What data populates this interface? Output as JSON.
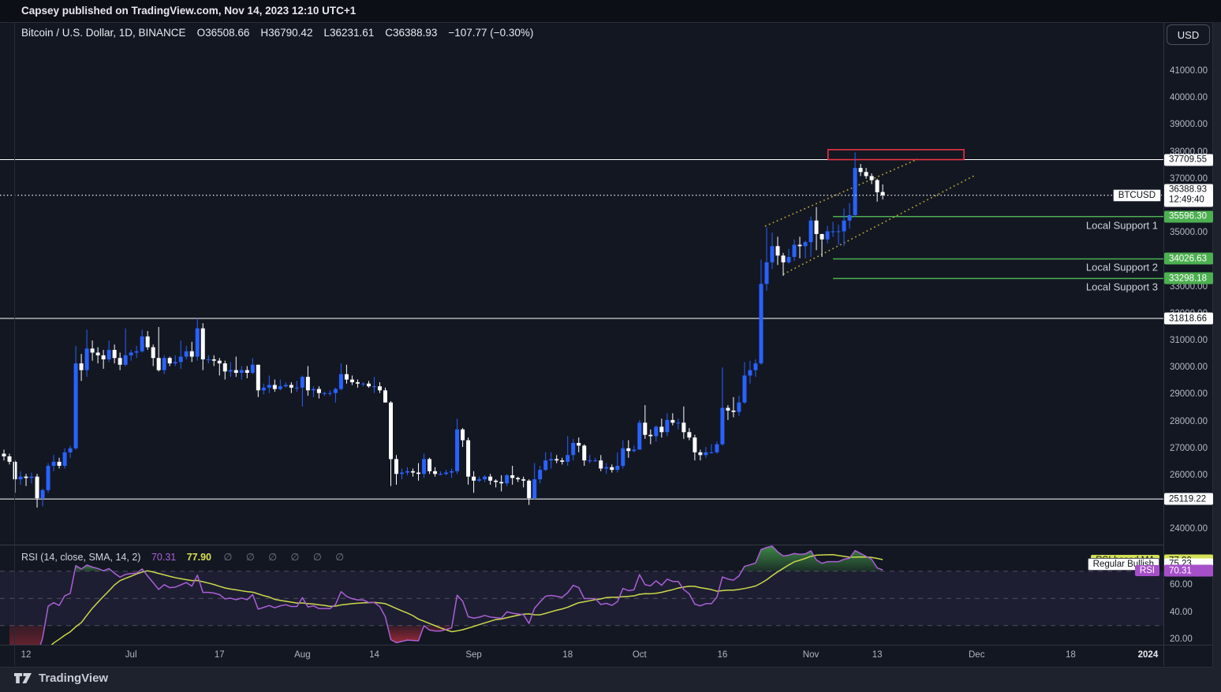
{
  "top_bar": {
    "attribution": "Capsey published on TradingView.com, Nov 14, 2023 12:10 UTC+1"
  },
  "header": {
    "symbol": "Bitcoin / U.S. Dollar, 1D, BINANCE",
    "o": "O36508.66",
    "h": "H36790.42",
    "l": "L36231.61",
    "c": "C36388.93",
    "change": "−107.77 (−0.30%)"
  },
  "price_scale": {
    "currency": "USD",
    "ticks": [
      {
        "label": "41000.00",
        "price": 41000
      },
      {
        "label": "40000.00",
        "price": 40000
      },
      {
        "label": "39000.00",
        "price": 39000
      },
      {
        "label": "38000.00",
        "price": 38000
      },
      {
        "label": "37000.00",
        "price": 37000
      },
      {
        "label": "35000.00",
        "price": 35000
      },
      {
        "label": "33000.00",
        "price": 33000
      },
      {
        "label": "32000.00",
        "price": 32000
      },
      {
        "label": "31000.00",
        "price": 31000
      },
      {
        "label": "30000.00",
        "price": 30000
      },
      {
        "label": "29000.00",
        "price": 29000
      },
      {
        "label": "28000.00",
        "price": 28000
      },
      {
        "label": "27000.00",
        "price": 27000
      },
      {
        "label": "26000.00",
        "price": 26000
      },
      {
        "label": "24000.00",
        "price": 24000
      }
    ],
    "labels": [
      {
        "text": "37709.55",
        "price": 37709.55,
        "style": "white"
      },
      {
        "text": "36388.93",
        "countdown": "12:49:40",
        "price": 36388.93,
        "style": "white"
      },
      {
        "text": "35596.30",
        "price": 35596.3,
        "style": "green"
      },
      {
        "text": "34026.63",
        "price": 34026.63,
        "style": "green"
      },
      {
        "text": "33298.18",
        "price": 33298.18,
        "style": "green"
      },
      {
        "text": "31818.66",
        "price": 31818.66,
        "style": "white"
      },
      {
        "text": "25119.22",
        "price": 25119.22,
        "style": "white"
      }
    ]
  },
  "chart_data": {
    "type": "candlestick",
    "symbol": "BTCUSD",
    "exchange": "BINANCE",
    "timeframe": "1D",
    "start_date": "2023-06-08",
    "up_color": "#2962ff",
    "down_color": "#ffffff",
    "y_axis": {
      "min": 23500,
      "max": 42100
    },
    "candles": [
      [
        26800,
        26950,
        26550,
        26700
      ],
      [
        26700,
        26800,
        26400,
        26500
      ],
      [
        26500,
        26550,
        25350,
        25850
      ],
      [
        25850,
        26150,
        25650,
        25950
      ],
      [
        25950,
        26050,
        25600,
        25900
      ],
      [
        25900,
        26100,
        25700,
        25950
      ],
      [
        25950,
        26050,
        24800,
        25150
      ],
      [
        25150,
        25500,
        24850,
        25450
      ],
      [
        25450,
        26450,
        25350,
        26350
      ],
      [
        26350,
        26750,
        26150,
        26500
      ],
      [
        26500,
        26650,
        26250,
        26350
      ],
      [
        26350,
        27000,
        26250,
        26850
      ],
      [
        26850,
        27100,
        26650,
        27000
      ],
      [
        27000,
        30800,
        26950,
        30150
      ],
      [
        30150,
        30500,
        29500,
        29900
      ],
      [
        29900,
        31400,
        29650,
        30700
      ],
      [
        30700,
        31000,
        30250,
        30550
      ],
      [
        30550,
        30750,
        30150,
        30450
      ],
      [
        30450,
        30650,
        29950,
        30300
      ],
      [
        30300,
        31000,
        30200,
        30650
      ],
      [
        30650,
        30850,
        30150,
        30350
      ],
      [
        30350,
        30550,
        29900,
        30100
      ],
      [
        30100,
        31450,
        30050,
        30450
      ],
      [
        30450,
        30650,
        30250,
        30550
      ],
      [
        30550,
        30800,
        30350,
        30600
      ],
      [
        30600,
        31400,
        30550,
        31150
      ],
      [
        31150,
        31350,
        30650,
        30750
      ],
      [
        30750,
        30850,
        30050,
        30350
      ],
      [
        30350,
        31500,
        29850,
        29900
      ],
      [
        29900,
        30450,
        29750,
        30350
      ],
      [
        30350,
        30400,
        30050,
        30150
      ],
      [
        30150,
        30450,
        30050,
        30200
      ],
      [
        30200,
        31000,
        29950,
        30400
      ],
      [
        30400,
        30800,
        30300,
        30600
      ],
      [
        30600,
        30950,
        30200,
        30400
      ],
      [
        30400,
        31820,
        30250,
        31450
      ],
      [
        31450,
        31640,
        29900,
        30300
      ],
      [
        30300,
        30450,
        30150,
        30300
      ],
      [
        30300,
        30450,
        30050,
        30250
      ],
      [
        30250,
        30350,
        29700,
        30150
      ],
      [
        30150,
        30250,
        29550,
        29850
      ],
      [
        29850,
        30200,
        29650,
        29900
      ],
      [
        29900,
        30400,
        29650,
        29800
      ],
      [
        29800,
        30050,
        29550,
        29900
      ],
      [
        29900,
        30050,
        29600,
        29800
      ],
      [
        29800,
        30350,
        29750,
        30100
      ],
      [
        30100,
        30100,
        28900,
        29150
      ],
      [
        29150,
        29400,
        29000,
        29250
      ],
      [
        29250,
        29700,
        29050,
        29350
      ],
      [
        29350,
        29550,
        29100,
        29200
      ],
      [
        29200,
        29550,
        29150,
        29300
      ],
      [
        29300,
        29450,
        29250,
        29350
      ],
      [
        29350,
        29450,
        29050,
        29250
      ],
      [
        29250,
        29500,
        29100,
        29250
      ],
      [
        29250,
        29700,
        28550,
        29650
      ],
      [
        29650,
        30050,
        28950,
        29150
      ],
      [
        29150,
        29300,
        28900,
        29200
      ],
      [
        29200,
        29300,
        28850,
        29050
      ],
      [
        29050,
        29100,
        28950,
        29050
      ],
      [
        29050,
        29150,
        28950,
        29050
      ],
      [
        29050,
        29250,
        28700,
        29200
      ],
      [
        29200,
        30150,
        29150,
        29750
      ],
      [
        29750,
        30100,
        29400,
        29550
      ],
      [
        29550,
        29700,
        29350,
        29450
      ],
      [
        29450,
        29550,
        29250,
        29400
      ],
      [
        29400,
        29450,
        29300,
        29400
      ],
      [
        29400,
        29500,
        29250,
        29300
      ],
      [
        29300,
        29650,
        29050,
        29300
      ],
      [
        29300,
        29450,
        29050,
        29150
      ],
      [
        29150,
        29250,
        28700,
        28700
      ],
      [
        28700,
        28750,
        25600,
        26600
      ],
      [
        26600,
        26750,
        25650,
        26050
      ],
      [
        26050,
        26250,
        25850,
        26100
      ],
      [
        26100,
        26300,
        26000,
        26150
      ],
      [
        26150,
        26250,
        25950,
        26100
      ],
      [
        26100,
        26450,
        25800,
        26050
      ],
      [
        26050,
        26800,
        25900,
        26600
      ],
      [
        26600,
        26650,
        26050,
        26150
      ],
      [
        26150,
        26300,
        25950,
        26050
      ],
      [
        26050,
        26150,
        26000,
        26050
      ],
      [
        26050,
        26200,
        26000,
        26100
      ],
      [
        26100,
        26250,
        25900,
        26150
      ],
      [
        26150,
        28100,
        26050,
        27700
      ],
      [
        27700,
        27750,
        27050,
        27300
      ],
      [
        27300,
        27400,
        25650,
        25950
      ],
      [
        25950,
        26150,
        25350,
        25800
      ],
      [
        25800,
        25950,
        25750,
        25850
      ],
      [
        25850,
        26000,
        25750,
        25950
      ],
      [
        25950,
        26050,
        25650,
        25800
      ],
      [
        25800,
        25850,
        25550,
        25750
      ],
      [
        25750,
        26000,
        25400,
        25700
      ],
      [
        25700,
        26050,
        25600,
        26000
      ],
      [
        26000,
        26350,
        25650,
        25900
      ],
      [
        25900,
        25950,
        25750,
        25850
      ],
      [
        25850,
        25950,
        25550,
        25800
      ],
      [
        25800,
        25850,
        24900,
        25150
      ],
      [
        25150,
        26450,
        25100,
        25850
      ],
      [
        25850,
        26350,
        25700,
        26200
      ],
      [
        26200,
        26850,
        26150,
        26550
      ],
      [
        26550,
        26850,
        26250,
        26600
      ],
      [
        26600,
        26750,
        26450,
        26550
      ],
      [
        26550,
        26650,
        26400,
        26500
      ],
      [
        26500,
        27450,
        26350,
        26750
      ],
      [
        26750,
        27350,
        26550,
        27200
      ],
      [
        27200,
        27400,
        26850,
        27100
      ],
      [
        27100,
        27150,
        26350,
        26550
      ],
      [
        26550,
        26750,
        26450,
        26550
      ],
      [
        26550,
        26650,
        26500,
        26550
      ],
      [
        26550,
        26750,
        26150,
        26250
      ],
      [
        26250,
        26450,
        26050,
        26300
      ],
      [
        26300,
        26400,
        26100,
        26200
      ],
      [
        26200,
        26850,
        26100,
        26350
      ],
      [
        26350,
        27300,
        26250,
        27000
      ],
      [
        27000,
        27300,
        26650,
        26900
      ],
      [
        26900,
        27100,
        26850,
        26950
      ],
      [
        26950,
        28050,
        26950,
        27950
      ],
      [
        27950,
        28600,
        27350,
        27500
      ],
      [
        27500,
        27700,
        27150,
        27450
      ],
      [
        27450,
        27850,
        27250,
        27800
      ],
      [
        27800,
        28100,
        27400,
        27600
      ],
      [
        27600,
        28300,
        27450,
        28050
      ],
      [
        28050,
        28300,
        27850,
        27950
      ],
      [
        27950,
        28100,
        27700,
        27950
      ],
      [
        27950,
        28550,
        27350,
        27600
      ],
      [
        27600,
        27750,
        27300,
        27400
      ],
      [
        27400,
        27500,
        26550,
        26850
      ],
      [
        26850,
        26950,
        26550,
        26750
      ],
      [
        26750,
        27050,
        26650,
        26850
      ],
      [
        26850,
        27150,
        26800,
        26850
      ],
      [
        26850,
        27250,
        26800,
        27150
      ],
      [
        27150,
        30000,
        27100,
        28500
      ],
      [
        28500,
        28600,
        28050,
        28400
      ],
      [
        28400,
        28900,
        28150,
        28350
      ],
      [
        28350,
        28950,
        28200,
        28700
      ],
      [
        28700,
        30200,
        28650,
        29700
      ],
      [
        29700,
        30250,
        29400,
        29900
      ],
      [
        29900,
        30300,
        29650,
        30150
      ],
      [
        30150,
        34000,
        30100,
        33100
      ],
      [
        33100,
        35200,
        32850,
        33900
      ],
      [
        33900,
        35000,
        33650,
        34500
      ],
      [
        34500,
        34850,
        33800,
        34150
      ],
      [
        34150,
        34250,
        33400,
        33900
      ],
      [
        33900,
        34400,
        33850,
        34100
      ],
      [
        34100,
        34750,
        33950,
        34550
      ],
      [
        34550,
        34850,
        34050,
        34500
      ],
      [
        34500,
        34700,
        34050,
        34650
      ],
      [
        34650,
        35600,
        34100,
        35450
      ],
      [
        35450,
        35950,
        34350,
        34950
      ],
      [
        34950,
        34950,
        34100,
        34750
      ],
      [
        34750,
        35250,
        34600,
        35050
      ],
      [
        35050,
        35400,
        34850,
        35050
      ],
      [
        35050,
        35300,
        34550,
        35050
      ],
      [
        35050,
        35900,
        34500,
        35450
      ],
      [
        35450,
        36100,
        35150,
        35650
      ],
      [
        35650,
        37980,
        35600,
        37400
      ],
      [
        37400,
        37550,
        37100,
        37250
      ],
      [
        37250,
        37400,
        37000,
        37100
      ],
      [
        37100,
        37200,
        36800,
        36950
      ],
      [
        36950,
        37000,
        36150,
        36500
      ],
      [
        36508.66,
        36790.42,
        36231.61,
        36388.93
      ]
    ],
    "overlays": {
      "horizontal_lines": [
        {
          "price": 37709.55,
          "color": "#ffffff",
          "style": "solid"
        },
        {
          "price": 31818.66,
          "color": "#ffffff",
          "style": "solid"
        },
        {
          "price": 25119.22,
          "color": "#ffffff",
          "style": "solid"
        }
      ],
      "current_price_line": {
        "price": 36388.93,
        "color": "#ffffff",
        "style": "dotted"
      },
      "support_lines": [
        {
          "price": 35596.3,
          "label": "Local Support 1",
          "color": "#4caf50",
          "start_index": 150
        },
        {
          "price": 34026.63,
          "label": "Local Support 2",
          "color": "#4caf50",
          "start_index": 150
        },
        {
          "price": 33298.18,
          "label": "Local Support 3",
          "color": "#4caf50",
          "start_index": 150
        }
      ],
      "channel": {
        "color": "#b8a535",
        "style": "dotted",
        "upper": {
          "i1": 137.7,
          "p1": 35240,
          "i2": 165.3,
          "p2": 37725
        },
        "lower": {
          "i1": 141.0,
          "p1": 33456,
          "i2": 175.8,
          "p2": 37140
        }
      },
      "resistance_box": {
        "i1": 149.1,
        "i2": 173.7,
        "price_top": 38080,
        "price_bottom": 37709.55,
        "color": "#f23645"
      }
    },
    "price_label_chip": "BTCUSD"
  },
  "rsi_pane": {
    "legend_title": "RSI (14, close, SMA, 14, 2)",
    "rsi_value": "70.31",
    "ma_value": "77.90",
    "divergence_icons": "∅ ∅ ∅ ∅ ∅ ∅",
    "rsi_color": "#ab5fd6",
    "ma_color": "#cdd94a",
    "length": 14,
    "ma_length": 14,
    "bands": [
      70,
      50,
      30
    ],
    "overbought_fill": "#4caf50",
    "oversold_fill": "#f23645",
    "ticks": [
      {
        "label": "60.00",
        "value": 60
      },
      {
        "label": "40.00",
        "value": 40
      },
      {
        "label": "20.00",
        "value": 20
      }
    ],
    "labels": [
      {
        "name": "RSI-based MA",
        "text": "77.90",
        "value": 77.9,
        "style": "yellow"
      },
      {
        "name": "Regular Bullish",
        "text": "75.23",
        "value": 75.23,
        "style": "white"
      },
      {
        "name": "RSI",
        "text": "70.31",
        "value": 70.31,
        "style": "purple"
      }
    ]
  },
  "time_axis": {
    "ticks": [
      {
        "label": "12",
        "index": 4
      },
      {
        "label": "Jul",
        "index": 23
      },
      {
        "label": "17",
        "index": 39
      },
      {
        "label": "Aug",
        "index": 54
      },
      {
        "label": "14",
        "index": 67
      },
      {
        "label": "Sep",
        "index": 85
      },
      {
        "label": "18",
        "index": 102
      },
      {
        "label": "Oct",
        "index": 115
      },
      {
        "label": "16",
        "index": 130
      },
      {
        "label": "Nov",
        "index": 146
      },
      {
        "label": "13",
        "index": 158
      },
      {
        "label": "Dec",
        "index": 176
      },
      {
        "label": "18",
        "index": 193
      },
      {
        "label": "2024",
        "index": 207,
        "emphasis": true
      }
    ]
  },
  "footer": {
    "brand": "TradingView"
  }
}
